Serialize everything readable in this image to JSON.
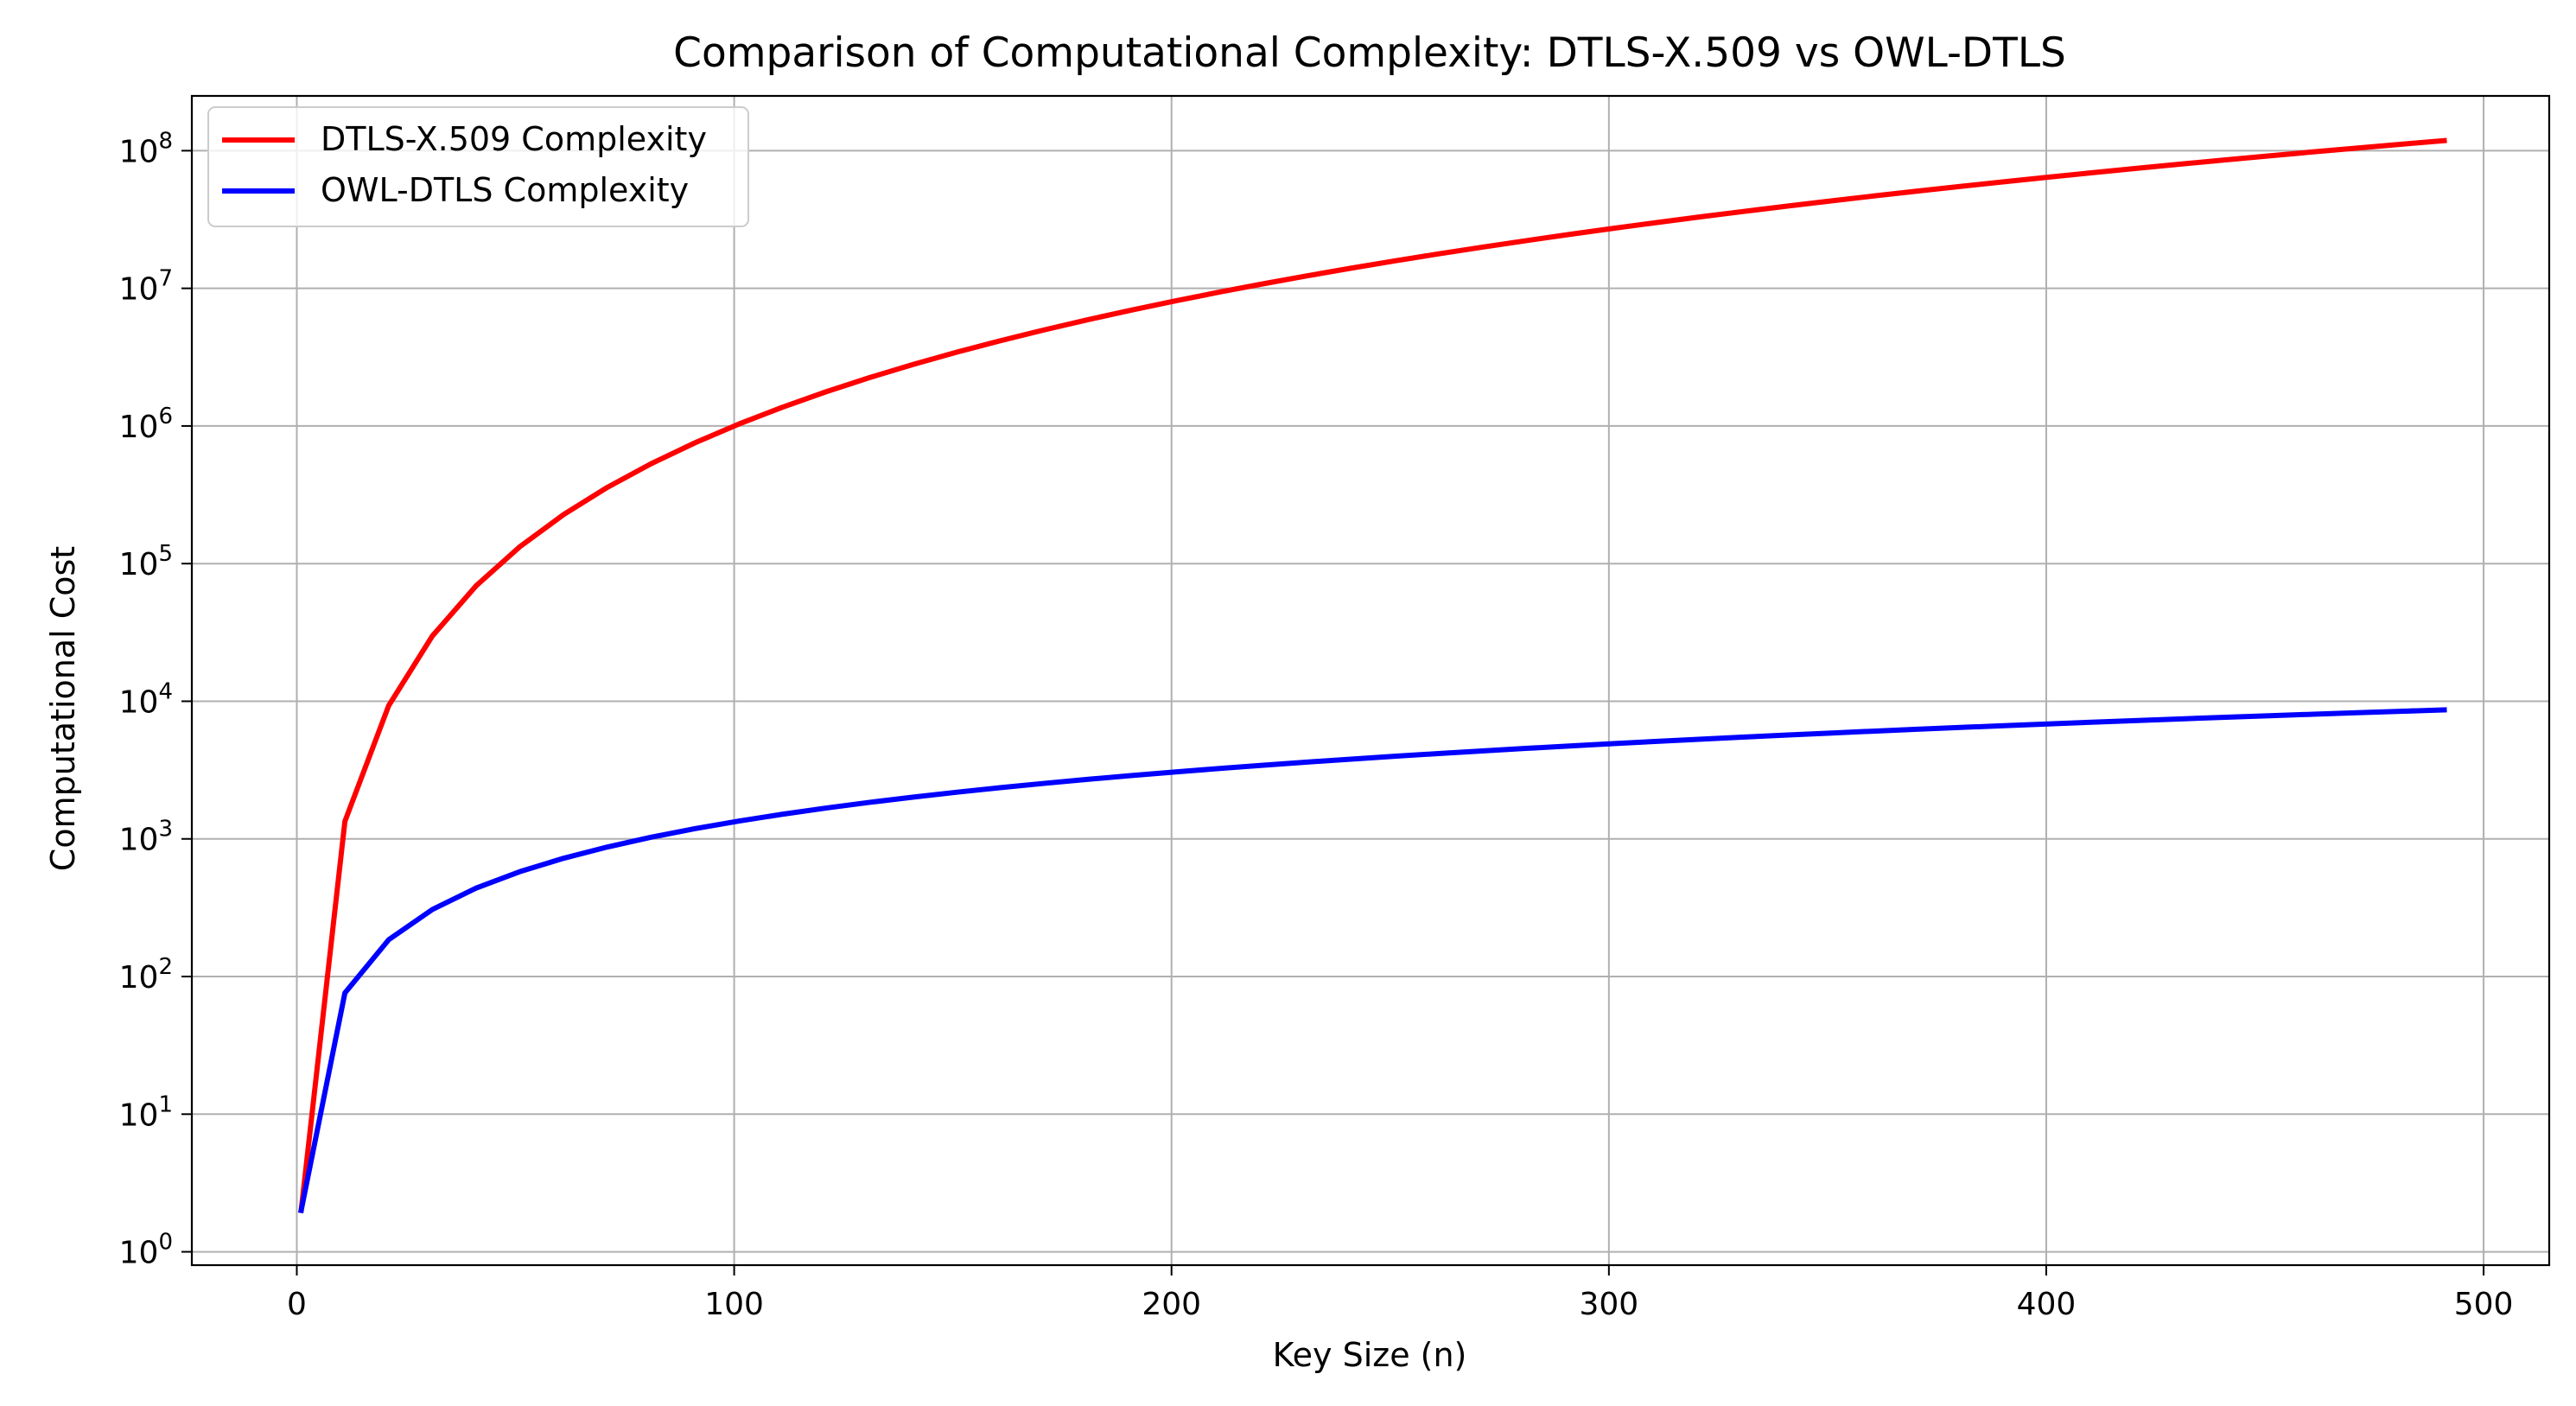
{
  "chart_data": {
    "type": "line",
    "title": "Comparison of Computational Complexity: DTLS-X.509 vs OWL-DTLS",
    "xlabel": "Key Size (n)",
    "ylabel": "Computational Cost",
    "xlim": [
      -24,
      515
    ],
    "ylim": [
      0.8,
      250000000
    ],
    "yscale": "log",
    "grid": true,
    "legend_position": "top-left",
    "xticks": [
      0,
      100,
      200,
      300,
      400,
      500
    ],
    "xtick_labels": [
      "0",
      "100",
      "200",
      "300",
      "400",
      "500"
    ],
    "yticks": [
      1,
      10,
      100,
      1000,
      10000,
      100000,
      1000000,
      10000000,
      100000000
    ],
    "ytick_labels": [
      {
        "base": "10",
        "exp": "0"
      },
      {
        "base": "10",
        "exp": "1"
      },
      {
        "base": "10",
        "exp": "2"
      },
      {
        "base": "10",
        "exp": "3"
      },
      {
        "base": "10",
        "exp": "4"
      },
      {
        "base": "10",
        "exp": "5"
      },
      {
        "base": "10",
        "exp": "6"
      },
      {
        "base": "10",
        "exp": "7"
      },
      {
        "base": "10",
        "exp": "8"
      }
    ],
    "x": [
      1,
      11,
      21,
      31,
      41,
      51,
      61,
      71,
      81,
      91,
      101,
      111,
      121,
      131,
      141,
      151,
      161,
      171,
      181,
      191,
      201,
      211,
      221,
      231,
      241,
      251,
      261,
      271,
      281,
      291,
      301,
      311,
      321,
      331,
      341,
      351,
      361,
      371,
      381,
      391,
      401,
      411,
      421,
      431,
      441,
      451,
      461,
      471,
      481,
      491
    ],
    "series": [
      {
        "name": "DTLS-X.509 Complexity",
        "color": "#ff0000",
        "values": [
          2,
          1342,
          9282,
          29822,
          68962,
          132702,
          227042,
          357982,
          531522,
          753662,
          1030302,
          1367642,
          1771562,
          2248092,
          2803222,
          3442952,
          4173282,
          5000212,
          5929742,
          6967872,
          8120602,
          9393932,
          10793862,
          12326392,
          13997522,
          15813252,
          17779582,
          19902512,
          22188042,
          24642172,
          27270902,
          30080232,
          33076162,
          36264692,
          39651822,
          43243552,
          47045882,
          51064812,
          55306342,
          59776472,
          64481202,
          69426532,
          74618462,
          80062992,
          85766122,
          91733852,
          97972182,
          104487112,
          111284642,
          118370772
        ]
      },
      {
        "name": "OWL-DTLS Complexity",
        "color": "#0000ff",
        "values": [
          2,
          76,
          185,
          307,
          439,
          578,
          723,
          873,
          1028,
          1186,
          1346,
          1510,
          1675,
          1843,
          2013,
          2185,
          2358,
          2534,
          2710,
          2888,
          3067,
          3248,
          3430,
          3613,
          3797,
          3982,
          4168,
          4355,
          4543,
          4731,
          4921,
          5111,
          5302,
          5494,
          5687,
          5880,
          6074,
          6269,
          6464,
          6660,
          6857,
          7054,
          7252,
          7450,
          7649,
          7849,
          8049,
          8250,
          8451,
          8652
        ]
      }
    ]
  }
}
